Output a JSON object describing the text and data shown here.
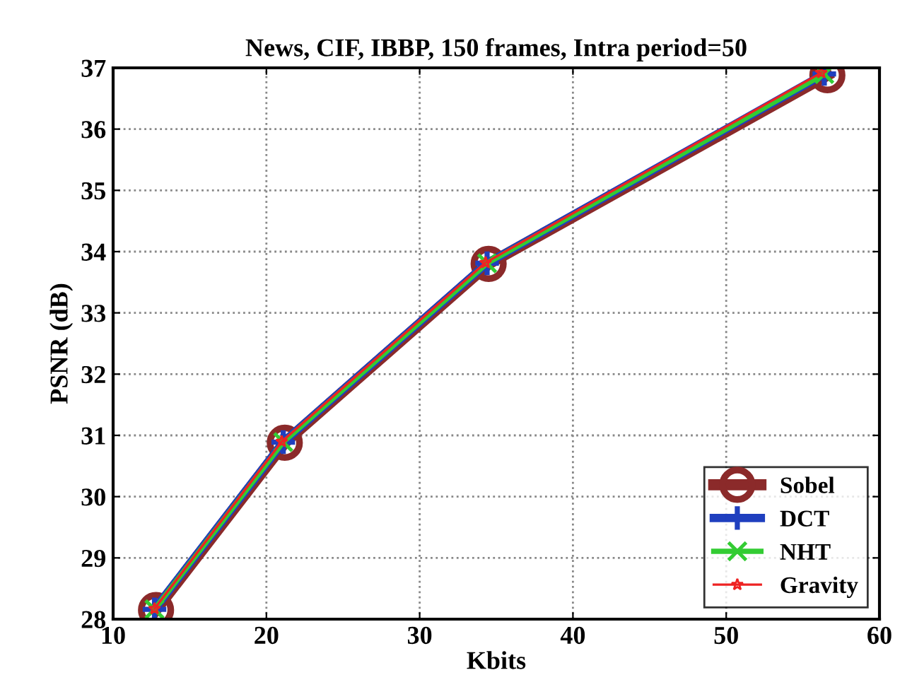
{
  "chart_data": {
    "type": "line",
    "title": "News, CIF, IBBP, 150 frames, Intra period=50",
    "xlabel": "Kbits",
    "ylabel": "PSNR (dB)",
    "xlim": [
      10,
      60
    ],
    "xticks": [
      10,
      20,
      30,
      40,
      50,
      60
    ],
    "ylim": [
      28,
      37
    ],
    "yticks": [
      28,
      29,
      30,
      31,
      32,
      33,
      34,
      35,
      36,
      37
    ],
    "grid": true,
    "legend": "bottom right",
    "series": [
      {
        "name": "Sobel",
        "color": "#8b2a2a",
        "marker": "circle",
        "x": [
          12.8,
          21.2,
          34.5,
          56.6
        ],
        "values": [
          28.15,
          30.88,
          33.8,
          36.88
        ]
      },
      {
        "name": "DCT",
        "color": "#1f3fbf",
        "marker": "plus",
        "x": [
          12.7,
          21.1,
          34.4,
          56.4
        ],
        "values": [
          28.16,
          30.89,
          33.81,
          36.9
        ]
      },
      {
        "name": "NHT",
        "color": "#33cc33",
        "marker": "cross",
        "x": [
          12.7,
          21.1,
          34.4,
          56.4
        ],
        "values": [
          28.16,
          30.89,
          33.81,
          36.9
        ]
      },
      {
        "name": "Gravity",
        "color": "#ee2222",
        "marker": "star",
        "x": [
          12.7,
          21.0,
          34.3,
          56.2
        ],
        "values": [
          28.17,
          30.9,
          33.82,
          36.92
        ]
      }
    ]
  }
}
